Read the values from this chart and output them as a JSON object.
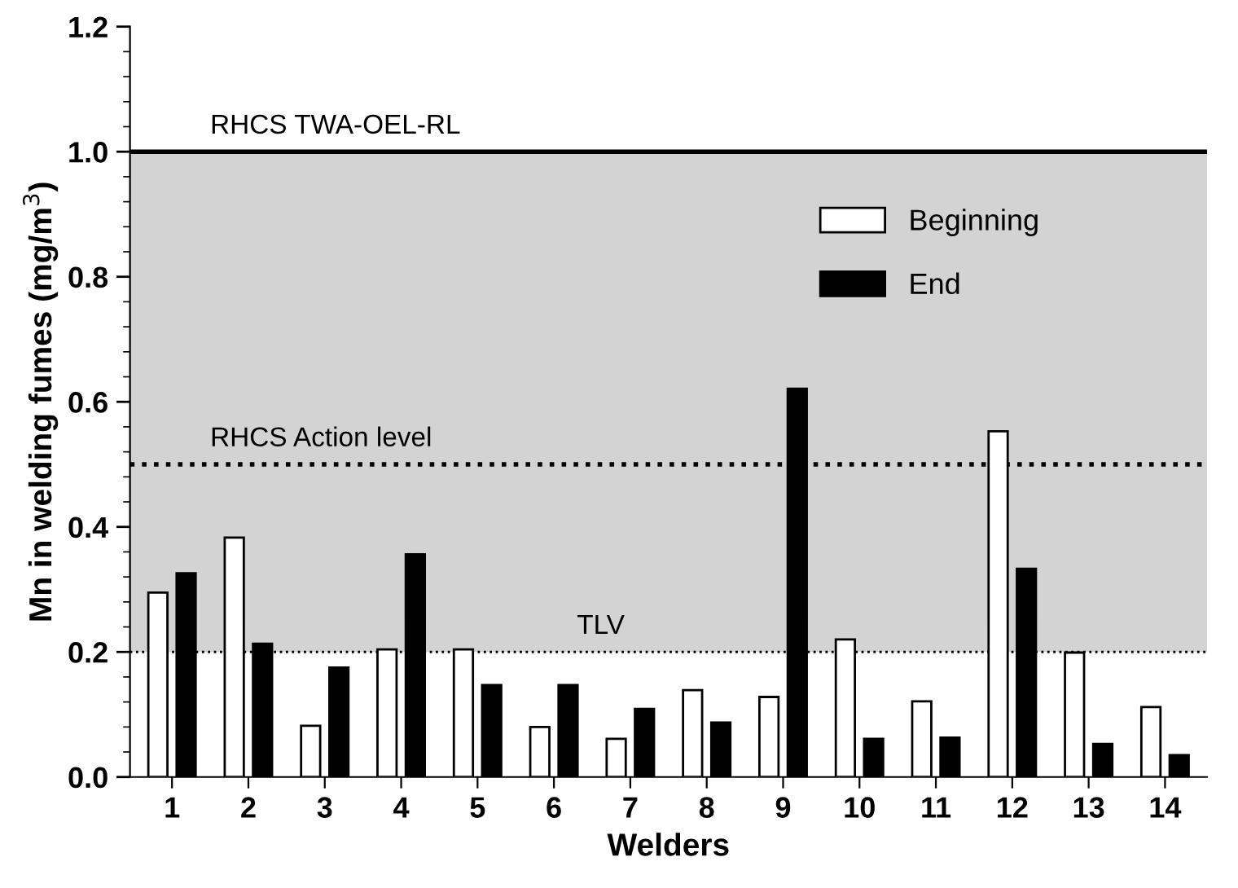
{
  "chart_data": {
    "type": "bar",
    "xlabel": "Welders",
    "ylabel": "Mn in welding fumes (mg/m$^{3}$)",
    "categories": [
      "1",
      "2",
      "3",
      "4",
      "5",
      "6",
      "7",
      "8",
      "9",
      "10",
      "11",
      "12",
      "13",
      "14"
    ],
    "series": [
      {
        "name": "Beginning",
        "color": "#ffffff",
        "values": [
          0.295,
          0.383,
          0.082,
          0.204,
          0.204,
          0.08,
          0.061,
          0.139,
          0.128,
          0.22,
          0.121,
          0.553,
          0.199,
          0.112
        ]
      },
      {
        "name": "End",
        "color": "#000000",
        "values": [
          0.326,
          0.213,
          0.175,
          0.356,
          0.147,
          0.147,
          0.109,
          0.087,
          0.621,
          0.061,
          0.063,
          0.333,
          0.053,
          0.035
        ]
      }
    ],
    "ylim": [
      0,
      1.2
    ],
    "yticks": [
      {
        "value": 0,
        "label": "0.0"
      },
      0.2,
      0.4,
      0.6,
      0.8,
      {
        "value": 1,
        "label": "1.0"
      },
      1.2
    ],
    "bands": [
      {
        "axis": "y",
        "from": 0.2,
        "to": 1.0,
        "color": "#d3d3d3"
      }
    ],
    "ref_lines": [
      {
        "axis": "y",
        "value": 1.0,
        "label": "RHCS TWA-OEL-RL",
        "line_style": "solid"
      },
      {
        "axis": "y",
        "value": 0.5,
        "label": "RHCS Action level",
        "line_style": "dotted"
      },
      {
        "axis": "y",
        "value": 0.2,
        "label": "TLV",
        "line_style": "dotted"
      }
    ],
    "legend": "top right",
    "grid": false
  }
}
